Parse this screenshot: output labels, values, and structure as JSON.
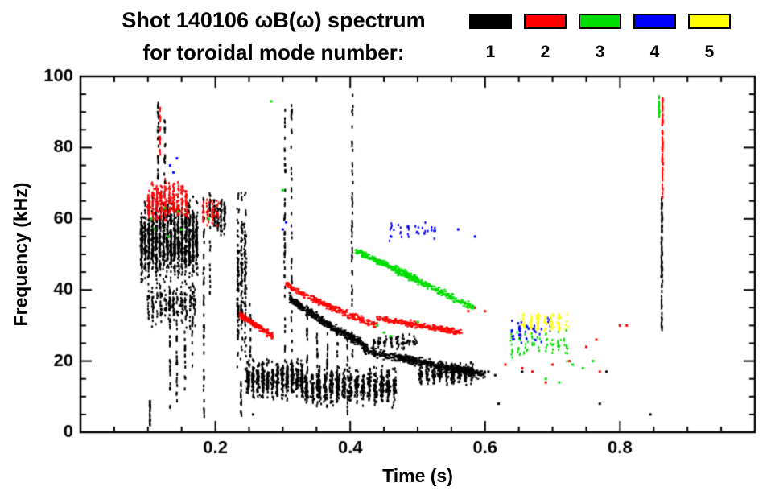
{
  "chart_data": {
    "type": "scatter",
    "title": "Shot 140106 ωB(ω) spectrum",
    "subtitle": "for toroidal mode number:",
    "xlabel": "Time (s)",
    "ylabel": "Frequency (kHz)",
    "xlim": [
      0.0,
      1.0
    ],
    "ylim": [
      0,
      100
    ],
    "xticks": [
      0.2,
      0.4,
      0.6,
      0.8
    ],
    "yticks": [
      0,
      20,
      40,
      60,
      80,
      100
    ],
    "x_minor_step": 0.05,
    "y_minor_step": 5,
    "grid": false,
    "legend_position": "top-right",
    "legend": [
      {
        "label": "1",
        "color": "#000000"
      },
      {
        "label": "2",
        "color": "#ff0000"
      },
      {
        "label": "3",
        "color": "#00dd00"
      },
      {
        "label": "4",
        "color": "#0000ff"
      },
      {
        "label": "5",
        "color": "#ffff00"
      }
    ],
    "series": [
      {
        "name": "n=1",
        "color": "#000000",
        "clusters": [
          {
            "kind": "blob",
            "t": [
              0.088,
              0.175
            ],
            "f": [
              42,
              66
            ],
            "n": 1400,
            "cols": 16
          },
          {
            "kind": "blob",
            "t": [
              0.098,
              0.172
            ],
            "f": [
              28,
              44
            ],
            "n": 220,
            "cols": 12
          },
          {
            "kind": "vline",
            "t": 0.103,
            "f": [
              2,
              9
            ],
            "n": 20
          },
          {
            "kind": "vline",
            "t": 0.115,
            "f": [
              68,
              95
            ],
            "n": 26
          },
          {
            "kind": "vline",
            "t": 0.125,
            "f": [
              66,
              88
            ],
            "n": 18
          },
          {
            "kind": "vline",
            "t": 0.133,
            "f": [
              6,
              40
            ],
            "n": 26
          },
          {
            "kind": "vline",
            "t": 0.143,
            "f": [
              5,
              42
            ],
            "n": 26
          },
          {
            "kind": "vline",
            "t": 0.155,
            "f": [
              10,
              40
            ],
            "n": 22
          },
          {
            "kind": "vline",
            "t": 0.166,
            "f": [
              18,
              42
            ],
            "n": 18
          },
          {
            "kind": "vline",
            "t": 0.183,
            "f": [
              4,
              66
            ],
            "n": 50
          },
          {
            "kind": "vline",
            "t": 0.192,
            "f": [
              38,
              68
            ],
            "n": 22
          },
          {
            "kind": "blob",
            "t": [
              0.196,
              0.216
            ],
            "f": [
              55,
              67
            ],
            "n": 110,
            "cols": 4
          },
          {
            "kind": "blob",
            "t": [
              0.231,
              0.247
            ],
            "f": [
              15,
              70
            ],
            "n": 280,
            "cols": 3
          },
          {
            "kind": "vline",
            "t": 0.238,
            "f": [
              4,
              15
            ],
            "n": 16
          },
          {
            "kind": "blob",
            "t": [
              0.245,
              0.332
            ],
            "f": [
              9,
              21
            ],
            "n": 650,
            "cols": 12
          },
          {
            "kind": "vline",
            "t": 0.252,
            "f": [
              21,
              38
            ],
            "n": 14
          },
          {
            "kind": "vline",
            "t": 0.303,
            "f": [
              20,
              95
            ],
            "n": 48
          },
          {
            "kind": "vline",
            "t": 0.313,
            "f": [
              8,
              92
            ],
            "n": 44
          },
          {
            "kind": "band",
            "t": [
              0.31,
              0.425
            ],
            "f": [
              38,
              24
            ],
            "n": 420,
            "th": 1.6,
            "p": 0.85
          },
          {
            "kind": "blob",
            "t": [
              0.33,
              0.47
            ],
            "f": [
              7,
              19
            ],
            "n": 800,
            "cols": 15
          },
          {
            "kind": "vline",
            "t": 0.336,
            "f": [
              5,
              36
            ],
            "n": 22
          },
          {
            "kind": "vline",
            "t": 0.351,
            "f": [
              5,
              34
            ],
            "n": 22
          },
          {
            "kind": "vline",
            "t": 0.366,
            "f": [
              6,
              32
            ],
            "n": 20
          },
          {
            "kind": "vline",
            "t": 0.381,
            "f": [
              6,
              30
            ],
            "n": 18
          },
          {
            "kind": "vline",
            "t": 0.396,
            "f": [
              5,
              28
            ],
            "n": 18
          },
          {
            "kind": "vline",
            "t": 0.403,
            "f": [
              20,
              95
            ],
            "n": 52
          },
          {
            "kind": "band",
            "t": [
              0.42,
              0.6
            ],
            "f": [
              23,
              16
            ],
            "n": 520,
            "th": 1.8,
            "p": 1
          },
          {
            "kind": "blob",
            "t": [
              0.5,
              0.585
            ],
            "f": [
              13,
              20
            ],
            "n": 300,
            "cols": 9
          },
          {
            "kind": "blob",
            "t": [
              0.43,
              0.5
            ],
            "f": [
              23,
              28
            ],
            "n": 90,
            "cols": 8
          },
          {
            "kind": "dots",
            "pts": [
              [
                0.256,
                5
              ],
              [
                0.605,
                17
              ],
              [
                0.615,
                16
              ],
              [
                0.62,
                8
              ],
              [
                0.655,
                17
              ],
              [
                0.77,
                8
              ],
              [
                0.78,
                17
              ],
              [
                0.8,
                30
              ],
              [
                0.845,
                5
              ]
            ]
          },
          {
            "kind": "vline",
            "t": 0.862,
            "f": [
              28,
              66
            ],
            "n": 90
          }
        ]
      },
      {
        "name": "n=2",
        "color": "#ff0000",
        "clusters": [
          {
            "kind": "blob",
            "t": [
              0.098,
              0.16
            ],
            "f": [
              58,
              71
            ],
            "n": 320,
            "cols": 10
          },
          {
            "kind": "vline",
            "t": 0.118,
            "f": [
              78,
              92
            ],
            "n": 16
          },
          {
            "kind": "blob",
            "t": [
              0.178,
              0.206
            ],
            "f": [
              57,
              67
            ],
            "n": 55,
            "cols": 4
          },
          {
            "kind": "band",
            "t": [
              0.236,
              0.285
            ],
            "f": [
              33,
              27
            ],
            "n": 150,
            "th": 1.2,
            "p": 1
          },
          {
            "kind": "band",
            "t": [
              0.305,
              0.44
            ],
            "f": [
              42,
              30
            ],
            "n": 260,
            "th": 1.3,
            "p": 0.8
          },
          {
            "kind": "band",
            "t": [
              0.44,
              0.565
            ],
            "f": [
              32,
              28
            ],
            "n": 230,
            "th": 1.2,
            "p": 1
          },
          {
            "kind": "dots",
            "pts": [
              [
                0.575,
                34
              ],
              [
                0.585,
                35
              ],
              [
                0.6,
                34
              ],
              [
                0.63,
                19
              ],
              [
                0.655,
                18
              ],
              [
                0.67,
                17
              ],
              [
                0.69,
                14
              ],
              [
                0.7,
                19
              ],
              [
                0.725,
                20
              ],
              [
                0.75,
                24
              ],
              [
                0.765,
                26
              ],
              [
                0.77,
                17
              ],
              [
                0.8,
                30
              ],
              [
                0.81,
                30
              ]
            ]
          },
          {
            "kind": "vline",
            "t": 0.863,
            "f": [
              66,
              94
            ],
            "n": 60
          }
        ]
      },
      {
        "name": "n=3",
        "color": "#00dd00",
        "clusters": [
          {
            "kind": "dots",
            "pts": [
              [
                0.105,
                60
              ],
              [
                0.11,
                57
              ],
              [
                0.125,
                63
              ],
              [
                0.13,
                55
              ],
              [
                0.145,
                62
              ],
              [
                0.15,
                57
              ],
              [
                0.19,
                60
              ],
              [
                0.283,
                93
              ],
              [
                0.3,
                68
              ]
            ]
          },
          {
            "kind": "band",
            "t": [
              0.408,
              0.5
            ],
            "f": [
              51,
              43
            ],
            "n": 240,
            "th": 1.3,
            "p": 1
          },
          {
            "kind": "band",
            "t": [
              0.46,
              0.585
            ],
            "f": [
              46,
              35
            ],
            "n": 220,
            "th": 1.4,
            "p": 1
          },
          {
            "kind": "dots",
            "pts": [
              [
                0.44,
                30
              ],
              [
                0.45,
                28
              ],
              [
                0.46,
                27
              ],
              [
                0.5,
                31
              ]
            ]
          },
          {
            "kind": "blob",
            "t": [
              0.635,
              0.725
            ],
            "f": [
              20,
              30
            ],
            "n": 70,
            "cols": 9
          },
          {
            "kind": "dots",
            "pts": [
              [
                0.69,
                15
              ],
              [
                0.71,
                14
              ],
              [
                0.73,
                19
              ],
              [
                0.745,
                18
              ],
              [
                0.76,
                20
              ]
            ]
          },
          {
            "kind": "vline",
            "t": 0.858,
            "f": [
              87,
              95
            ],
            "n": 18
          }
        ]
      },
      {
        "name": "n=4",
        "color": "#0000ff",
        "clusters": [
          {
            "kind": "dots",
            "pts": [
              [
                0.133,
                75
              ],
              [
                0.138,
                73
              ],
              [
                0.143,
                77
              ],
              [
                0.3,
                57
              ],
              [
                0.305,
                59
              ],
              [
                0.56,
                57
              ],
              [
                0.585,
                55
              ]
            ]
          },
          {
            "kind": "blob",
            "t": [
              0.455,
              0.53
            ],
            "f": [
              53,
              60
            ],
            "n": 36,
            "cols": 6
          },
          {
            "kind": "blob",
            "t": [
              0.635,
              0.7
            ],
            "f": [
              24,
              33
            ],
            "n": 46,
            "cols": 6
          }
        ]
      },
      {
        "name": "n=5",
        "color": "#ffff00",
        "clusters": [
          {
            "kind": "blob",
            "t": [
              0.652,
              0.725
            ],
            "f": [
              27,
              35
            ],
            "n": 85,
            "cols": 7
          },
          {
            "kind": "dots",
            "pts": [
              [
                0.7,
                33
              ]
            ]
          }
        ]
      }
    ]
  }
}
